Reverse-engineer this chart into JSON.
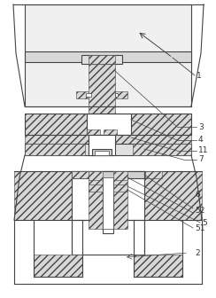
{
  "bg_color": "#ffffff",
  "lc": "#444444",
  "lw": 0.8,
  "figsize": [
    2.44,
    3.36
  ],
  "dpi": 100,
  "label_fs": 6.5,
  "label_color": "#333333",
  "hatch_fc": "#d8d8d8",
  "hatch_pattern": "////",
  "hatch_lw": 0.4
}
